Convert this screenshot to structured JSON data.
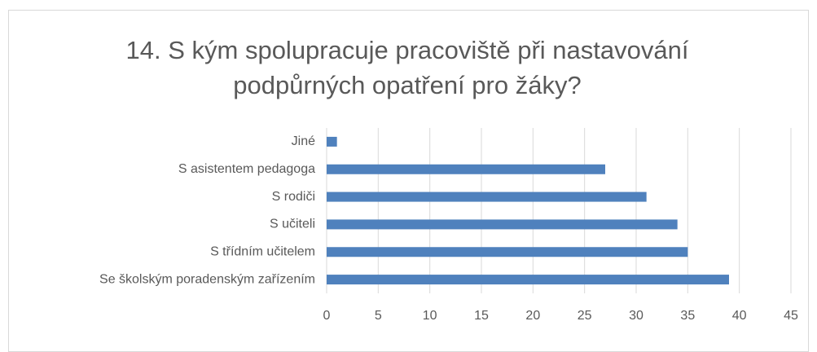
{
  "chart_data": {
    "type": "bar",
    "orientation": "horizontal",
    "title": "14. S kým spolupracuje pracoviště při nastavování podpůrných opatření pro žáky?",
    "categories": [
      "Jiné",
      "S asistentem pedagoga",
      "S rodiči",
      "S učiteli",
      "S třídním učitelem",
      "Se školským poradenským zařízením"
    ],
    "values": [
      1,
      27,
      31,
      34,
      35,
      39
    ],
    "color": "#4f81bd",
    "xlim": [
      0,
      45
    ],
    "xticks": [
      0,
      5,
      10,
      15,
      20,
      25,
      30,
      35,
      40,
      45
    ],
    "grid": true
  }
}
